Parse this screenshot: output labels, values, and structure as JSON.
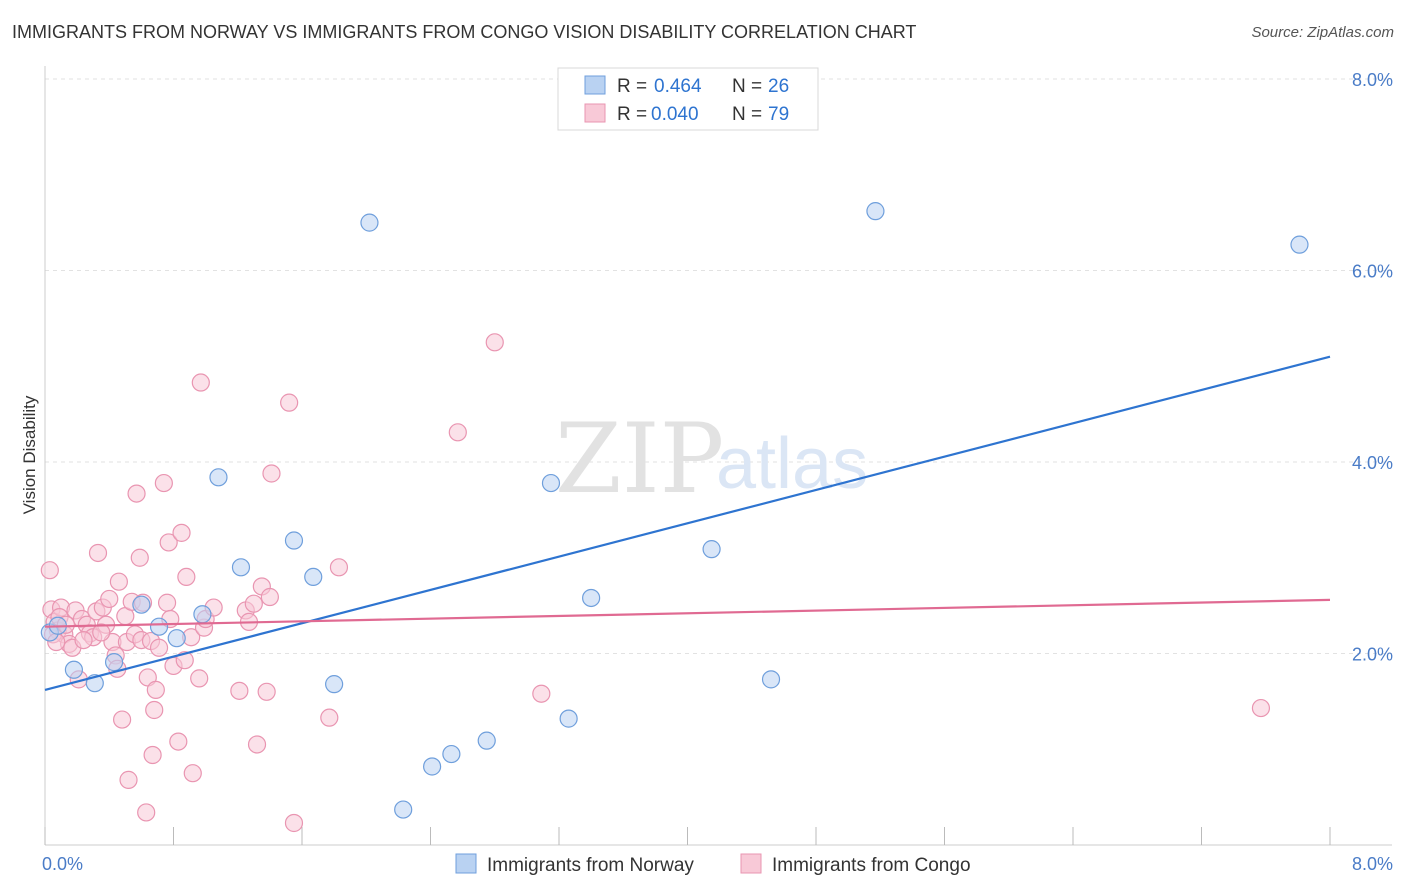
{
  "header": {
    "title": "IMMIGRANTS FROM NORWAY VS IMMIGRANTS FROM CONGO VISION DISABILITY CORRELATION CHART",
    "source": "Source: ZipAtlas.com"
  },
  "watermark": {
    "zip": "ZIP",
    "atlas": "atlas"
  },
  "legend": {
    "items": [
      {
        "r_label": "R =",
        "r_value": "0.464",
        "n_label": "N =",
        "n_value": "26"
      },
      {
        "r_label": "R =",
        "r_value": "0.040",
        "n_label": "N =",
        "n_value": "79"
      }
    ]
  },
  "bottom_legend": [
    "Immigrants from Norway",
    "Immigrants from Congo"
  ],
  "chart_data": {
    "type": "scatter",
    "title": "IMMIGRANTS FROM NORWAY VS IMMIGRANTS FROM CONGO VISION DISABILITY CORRELATION CHART",
    "xlabel": "",
    "ylabel": "Vision Disability",
    "xlim": [
      0,
      8
    ],
    "ylim": [
      0,
      8
    ],
    "x_tick_labels": [
      "0.0%",
      "8.0%"
    ],
    "y_ticks": [
      2,
      4,
      6,
      8
    ],
    "y_tick_labels": [
      "2.0%",
      "4.0%",
      "6.0%",
      "8.0%"
    ],
    "grid": true,
    "legend_position": "top-center",
    "colors": {
      "norway_fill": "#b9d2f2",
      "norway_stroke": "#6f9fdc",
      "norway_line": "#2e74d0",
      "congo_fill": "#f8c9d7",
      "congo_stroke": "#e995b1",
      "congo_line": "#e06a92",
      "tick_text": "#4a7cc7"
    },
    "series": [
      {
        "name": "Immigrants from Norway",
        "r": 0.464,
        "n": 26,
        "trend": [
          [
            0,
            1.62
          ],
          [
            8,
            5.1
          ]
        ],
        "points": [
          [
            0.03,
            2.22
          ],
          [
            0.08,
            2.29
          ],
          [
            0.18,
            1.83
          ],
          [
            0.31,
            1.69
          ],
          [
            0.43,
            1.91
          ],
          [
            0.6,
            2.51
          ],
          [
            0.71,
            2.28
          ],
          [
            0.82,
            2.16
          ],
          [
            0.98,
            2.41
          ],
          [
            1.08,
            3.84
          ],
          [
            1.22,
            2.9
          ],
          [
            1.55,
            3.18
          ],
          [
            1.67,
            2.8
          ],
          [
            1.8,
            1.68
          ],
          [
            2.02,
            6.5
          ],
          [
            2.23,
            0.37
          ],
          [
            2.41,
            0.82
          ],
          [
            2.53,
            0.95
          ],
          [
            2.75,
            1.09
          ],
          [
            3.15,
            3.78
          ],
          [
            3.26,
            1.32
          ],
          [
            3.4,
            2.58
          ],
          [
            4.15,
            3.09
          ],
          [
            4.52,
            1.73
          ],
          [
            5.17,
            6.62
          ],
          [
            7.81,
            6.27
          ]
        ]
      },
      {
        "name": "Immigrants from Congo",
        "r": 0.04,
        "n": 79,
        "trend": [
          [
            0,
            2.28
          ],
          [
            8,
            2.56
          ]
        ],
        "points": [
          [
            0.03,
            2.87
          ],
          [
            0.04,
            2.46
          ],
          [
            0.06,
            2.33
          ],
          [
            0.08,
            2.24
          ],
          [
            0.1,
            2.48
          ],
          [
            0.12,
            2.2
          ],
          [
            0.15,
            2.1
          ],
          [
            0.17,
            2.06
          ],
          [
            0.19,
            2.45
          ],
          [
            0.21,
            1.73
          ],
          [
            0.23,
            2.36
          ],
          [
            0.26,
            2.3
          ],
          [
            0.28,
            2.21
          ],
          [
            0.3,
            2.17
          ],
          [
            0.32,
            2.44
          ],
          [
            0.33,
            3.05
          ],
          [
            0.36,
            2.48
          ],
          [
            0.38,
            2.3
          ],
          [
            0.4,
            2.57
          ],
          [
            0.42,
            2.12
          ],
          [
            0.44,
            1.98
          ],
          [
            0.45,
            1.84
          ],
          [
            0.46,
            2.75
          ],
          [
            0.48,
            1.31
          ],
          [
            0.5,
            2.39
          ],
          [
            0.51,
            2.12
          ],
          [
            0.52,
            0.68
          ],
          [
            0.54,
            2.54
          ],
          [
            0.56,
            2.2
          ],
          [
            0.57,
            3.67
          ],
          [
            0.59,
            3.0
          ],
          [
            0.6,
            2.14
          ],
          [
            0.61,
            2.53
          ],
          [
            0.63,
            0.34
          ],
          [
            0.64,
            1.75
          ],
          [
            0.66,
            2.13
          ],
          [
            0.67,
            0.94
          ],
          [
            0.68,
            1.41
          ],
          [
            0.69,
            1.62
          ],
          [
            0.71,
            2.06
          ],
          [
            0.74,
            3.78
          ],
          [
            0.76,
            2.53
          ],
          [
            0.77,
            3.16
          ],
          [
            0.78,
            2.36
          ],
          [
            0.8,
            1.87
          ],
          [
            0.83,
            1.08
          ],
          [
            0.85,
            3.26
          ],
          [
            0.87,
            1.93
          ],
          [
            0.88,
            2.8
          ],
          [
            0.91,
            2.17
          ],
          [
            0.92,
            0.75
          ],
          [
            0.96,
            1.74
          ],
          [
            0.97,
            4.83
          ],
          [
            0.99,
            2.27
          ],
          [
            1.0,
            2.36
          ],
          [
            1.05,
            2.48
          ],
          [
            1.21,
            1.61
          ],
          [
            1.25,
            2.45
          ],
          [
            1.27,
            2.33
          ],
          [
            1.3,
            2.52
          ],
          [
            1.32,
            1.05
          ],
          [
            1.35,
            2.7
          ],
          [
            1.38,
            1.6
          ],
          [
            1.4,
            2.59
          ],
          [
            1.41,
            3.88
          ],
          [
            1.52,
            4.62
          ],
          [
            1.55,
            0.23
          ],
          [
            1.77,
            1.33
          ],
          [
            1.83,
            2.9
          ],
          [
            2.57,
            4.31
          ],
          [
            2.8,
            5.25
          ],
          [
            3.09,
            1.58
          ],
          [
            7.57,
            1.43
          ],
          [
            0.05,
            2.2
          ],
          [
            0.07,
            2.12
          ],
          [
            0.09,
            2.38
          ],
          [
            0.13,
            2.3
          ],
          [
            0.24,
            2.14
          ],
          [
            0.35,
            2.22
          ]
        ]
      }
    ]
  }
}
